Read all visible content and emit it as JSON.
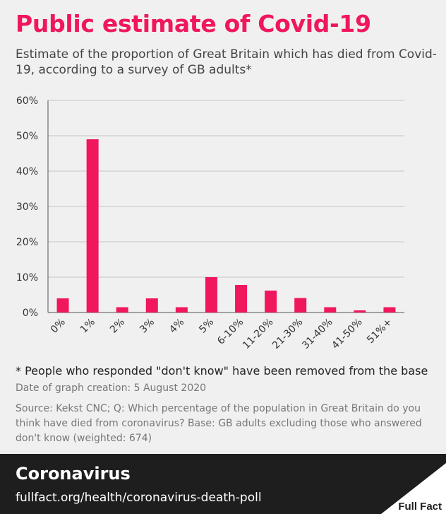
{
  "header": {
    "title": "Public estimate of Covid-19",
    "subtitle": "Estimate of the proportion of Great Britain which has died from Covid-19, according to a survey of GB adults*"
  },
  "chart_data": {
    "type": "bar",
    "categories": [
      "0%",
      "1%",
      "2%",
      "3%",
      "4%",
      "5%",
      "6-10%",
      "11-20%",
      "21-30%",
      "31-40%",
      "41-50%",
      "51%+"
    ],
    "values": [
      4,
      49,
      1.5,
      4,
      1.5,
      10,
      7.8,
      6.2,
      4.1,
      1.5,
      0.6,
      1.5
    ],
    "ylim": [
      0,
      60
    ],
    "yticks": [
      0,
      10,
      20,
      30,
      40,
      50,
      60
    ],
    "ytick_labels": [
      "0%",
      "10%",
      "20%",
      "30%",
      "40%",
      "50%",
      "60%"
    ],
    "grid": true,
    "bar_color": "#f0175c"
  },
  "notes": {
    "footnote": "* People who responded \"don't know\" have been removed from the base",
    "created": "Date of graph creation: 5 August 2020",
    "source": "Source: Kekst CNC; Q:  Which percentage of the population in Great Britain do you think have died from coronavirus? Base: GB adults excluding those who answered don't know (weighted: 674)"
  },
  "footer": {
    "section": "Coronavirus",
    "url": "fullfact.org/health/coronavirus-death-poll",
    "brand": "Full Fact"
  }
}
